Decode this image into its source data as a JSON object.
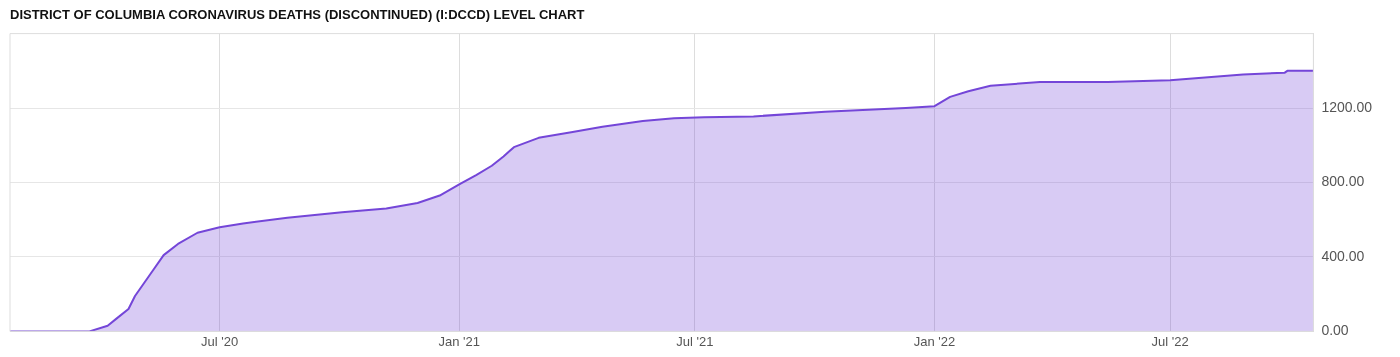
{
  "chart_data": {
    "type": "area",
    "title": "DISTRICT OF COLUMBIA CORONAVIRUS DEATHS (DISCONTINUED) (I:DCCD) LEVEL CHART",
    "x": [
      "2020-01-22",
      "2020-03-23",
      "2020-04-06",
      "2020-04-13",
      "2020-04-22",
      "2020-04-27",
      "2020-05-04",
      "2020-05-11",
      "2020-05-19",
      "2020-05-30",
      "2020-06-14",
      "2020-07-01",
      "2020-07-19",
      "2020-08-22",
      "2020-10-03",
      "2020-11-06",
      "2020-11-30",
      "2020-12-17",
      "2021-01-01",
      "2021-01-14",
      "2021-01-26",
      "2021-02-04",
      "2021-02-12",
      "2021-03-03",
      "2021-03-28",
      "2021-04-21",
      "2021-05-22",
      "2021-06-15",
      "2021-07-08",
      "2021-08-15",
      "2021-10-09",
      "2021-12-10",
      "2022-01-01",
      "2022-01-13",
      "2022-01-27",
      "2022-02-13",
      "2022-03-23",
      "2022-05-14",
      "2022-07-01",
      "2022-08-26",
      "2022-09-27",
      "2022-09-29",
      "2022-10-19"
    ],
    "series": [
      {
        "color": "#7446d8",
        "values": [
          0,
          0,
          30,
          70,
          120,
          190,
          260,
          330,
          410,
          470,
          530,
          560,
          580,
          610,
          640,
          660,
          690,
          730,
          790,
          840,
          890,
          940,
          990,
          1040,
          1070,
          1100,
          1130,
          1145,
          1150,
          1155,
          1180,
          1200,
          1210,
          1260,
          1290,
          1320,
          1340,
          1340,
          1350,
          1380,
          1390,
          1400,
          1400
        ]
      }
    ],
    "xlim": [
      "2020-01-22",
      "2022-10-19"
    ],
    "xticks": [
      {
        "value": "2020-07-01",
        "label": "Jul '20"
      },
      {
        "value": "2021-01-01",
        "label": "Jan '21"
      },
      {
        "value": "2021-07-01",
        "label": "Jul '21"
      },
      {
        "value": "2022-01-01",
        "label": "Jan '22"
      },
      {
        "value": "2022-07-01",
        "label": "Jul '22"
      }
    ],
    "ylim": [
      0,
      1600
    ],
    "yticks": [
      {
        "value": 0,
        "label": "0.00"
      },
      {
        "value": 400,
        "label": "400.00"
      },
      {
        "value": 800,
        "label": "800.00"
      },
      {
        "value": 1200,
        "label": "1200.00"
      }
    ],
    "grid": true,
    "legend": false,
    "marker": "none",
    "line_style": "solid"
  }
}
